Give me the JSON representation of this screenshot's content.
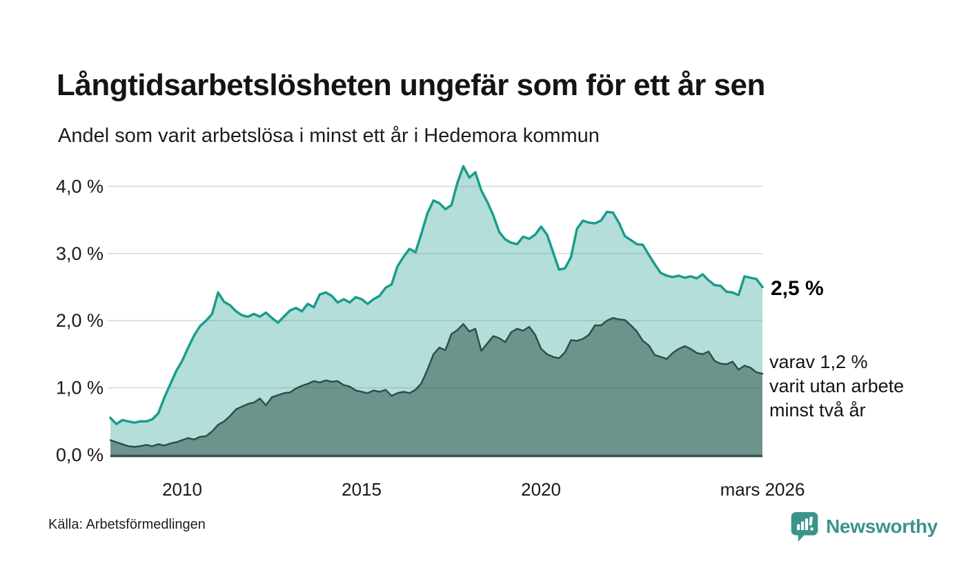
{
  "header": {
    "title": "Långtidsarbetslösheten ungefär som för ett år sen",
    "subtitle": "Andel som varit arbetslösa i minst ett år i Hedemora kommun"
  },
  "chart_data": {
    "type": "area",
    "unit": "%",
    "x_start": 2008.0,
    "x_end": 2026.17,
    "points_per_year": 6,
    "ylim": [
      0,
      4.4
    ],
    "grid": true,
    "grid_color": "#d8d8d8",
    "baseline_color": "#3c504b",
    "y_ticks": [
      {
        "value": 0,
        "label": "0,0 %"
      },
      {
        "value": 1,
        "label": "1,0 %"
      },
      {
        "value": 2,
        "label": "2,0 %"
      },
      {
        "value": 3,
        "label": "3,0 %"
      },
      {
        "value": 4,
        "label": "4,0 %"
      }
    ],
    "x_ticks": [
      {
        "year": 2010,
        "label": "2010"
      },
      {
        "year": 2015,
        "label": "2015"
      },
      {
        "year": 2020,
        "label": "2020"
      },
      {
        "year": 2026.17,
        "label": "mars 2026"
      }
    ],
    "series": [
      {
        "name": "Andel arbetslösa minst ett år",
        "color": "#1a9c8c",
        "fill": "rgba(26,156,140,0.33)",
        "stroke_width": 3.5,
        "last_value": 2.5,
        "values": [
          0.55,
          0.46,
          0.52,
          0.5,
          0.48,
          0.5,
          0.5,
          0.53,
          0.62,
          0.85,
          1.05,
          1.25,
          1.4,
          1.6,
          1.78,
          1.92,
          2.0,
          2.1,
          2.42,
          2.28,
          2.23,
          2.14,
          2.08,
          2.06,
          2.1,
          2.06,
          2.12,
          2.04,
          1.97,
          2.06,
          2.15,
          2.19,
          2.14,
          2.25,
          2.2,
          2.39,
          2.42,
          2.37,
          2.27,
          2.32,
          2.27,
          2.35,
          2.32,
          2.25,
          2.32,
          2.37,
          2.49,
          2.54,
          2.81,
          2.95,
          3.07,
          3.02,
          3.3,
          3.6,
          3.79,
          3.75,
          3.66,
          3.72,
          4.05,
          4.3,
          4.13,
          4.21,
          3.94,
          3.77,
          3.57,
          3.32,
          3.21,
          3.16,
          3.14,
          3.25,
          3.22,
          3.28,
          3.4,
          3.28,
          3.02,
          2.76,
          2.78,
          2.95,
          3.37,
          3.49,
          3.46,
          3.45,
          3.49,
          3.62,
          3.61,
          3.46,
          3.26,
          3.2,
          3.14,
          3.13,
          2.98,
          2.84,
          2.71,
          2.67,
          2.65,
          2.67,
          2.64,
          2.66,
          2.63,
          2.69,
          2.6,
          2.53,
          2.52,
          2.43,
          2.42,
          2.38,
          2.66,
          2.64,
          2.62,
          2.5
        ]
      },
      {
        "name": "Varav utan arbete minst två år",
        "color": "#2e4f48",
        "fill": "rgba(44,78,71,0.52)",
        "stroke_width": 2.5,
        "last_value": 1.2,
        "values": [
          0.22,
          0.19,
          0.16,
          0.13,
          0.12,
          0.13,
          0.15,
          0.13,
          0.16,
          0.14,
          0.17,
          0.19,
          0.22,
          0.25,
          0.23,
          0.27,
          0.28,
          0.35,
          0.45,
          0.5,
          0.58,
          0.68,
          0.72,
          0.76,
          0.78,
          0.84,
          0.74,
          0.86,
          0.89,
          0.92,
          0.93,
          0.99,
          1.03,
          1.06,
          1.1,
          1.08,
          1.11,
          1.09,
          1.1,
          1.04,
          1.02,
          0.96,
          0.94,
          0.92,
          0.96,
          0.94,
          0.97,
          0.88,
          0.92,
          0.94,
          0.92,
          0.97,
          1.07,
          1.27,
          1.5,
          1.6,
          1.56,
          1.8,
          1.86,
          1.95,
          1.84,
          1.88,
          1.55,
          1.66,
          1.77,
          1.74,
          1.68,
          1.83,
          1.88,
          1.85,
          1.91,
          1.79,
          1.58,
          1.5,
          1.46,
          1.44,
          1.53,
          1.71,
          1.7,
          1.73,
          1.79,
          1.93,
          1.93,
          2.0,
          2.04,
          2.02,
          2.01,
          1.93,
          1.84,
          1.7,
          1.63,
          1.49,
          1.46,
          1.43,
          1.52,
          1.58,
          1.62,
          1.58,
          1.52,
          1.5,
          1.54,
          1.4,
          1.36,
          1.35,
          1.39,
          1.27,
          1.33,
          1.3,
          1.23,
          1.21
        ]
      }
    ],
    "end_labels": {
      "primary": "2,5 %",
      "secondary": "varav 1,2 %\nvarit utan arbete\nminst två år"
    }
  },
  "footer": {
    "source": "Källa: Arbetsförmedlingen",
    "brand": "Newsworthy",
    "brand_color": "#3a948b"
  }
}
